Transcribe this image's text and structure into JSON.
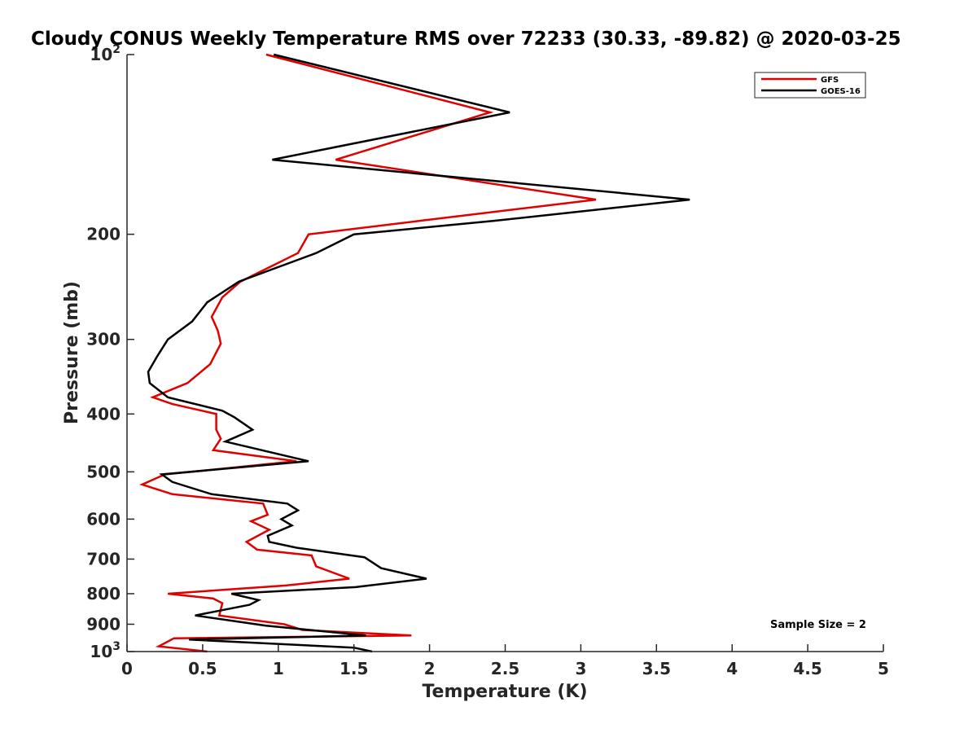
{
  "chart_data": {
    "type": "line",
    "title": "Cloudy CONUS Weekly Temperature RMS over 72233 (30.33, -89.82) @ 2020-03-25",
    "xlabel": "Temperature (K)",
    "ylabel": "Pressure (mb)",
    "xlim": [
      0,
      5
    ],
    "ylim": [
      100,
      1000
    ],
    "yscale": "log",
    "y_reversed": true,
    "grid": false,
    "legend_location": "top-right",
    "xticks": [
      0,
      0.5,
      1,
      1.5,
      2,
      2.5,
      3,
      3.5,
      4,
      4.5,
      5
    ],
    "xtick_labels": [
      "0",
      "0.5",
      "1",
      "1.5",
      "2",
      "2.5",
      "3",
      "3.5",
      "4",
      "4.5",
      "5"
    ],
    "yticks": [
      100,
      200,
      300,
      400,
      500,
      600,
      700,
      800,
      900,
      1000
    ],
    "ytick_labels": [
      {
        "base": "10",
        "exp": "2"
      },
      {
        "text": "200"
      },
      {
        "text": "300"
      },
      {
        "text": "400"
      },
      {
        "text": "500"
      },
      {
        "text": "600"
      },
      {
        "text": "700"
      },
      {
        "text": "800"
      },
      {
        "text": "900"
      },
      {
        "base": "10",
        "exp": "3"
      }
    ],
    "annotation": "Sample Size = 2",
    "series": [
      {
        "name": "GFS",
        "color": "#e00000",
        "points": [
          [
            0.92,
            100
          ],
          [
            2.4,
            125
          ],
          [
            1.38,
            150
          ],
          [
            3.1,
            175
          ],
          [
            1.93,
            190
          ],
          [
            1.2,
            200
          ],
          [
            1.13,
            215
          ],
          [
            0.75,
            240
          ],
          [
            0.63,
            255
          ],
          [
            0.56,
            275
          ],
          [
            0.6,
            290
          ],
          [
            0.62,
            305
          ],
          [
            0.55,
            330
          ],
          [
            0.4,
            355
          ],
          [
            0.17,
            375
          ],
          [
            0.3,
            385
          ],
          [
            0.59,
            400
          ],
          [
            0.59,
            425
          ],
          [
            0.62,
            440
          ],
          [
            0.57,
            460
          ],
          [
            1.12,
            480
          ],
          [
            0.25,
            505
          ],
          [
            0.1,
            525
          ],
          [
            0.3,
            545
          ],
          [
            0.9,
            565
          ],
          [
            0.93,
            590
          ],
          [
            0.82,
            605
          ],
          [
            0.94,
            625
          ],
          [
            0.79,
            655
          ],
          [
            0.86,
            675
          ],
          [
            1.22,
            690
          ],
          [
            1.25,
            720
          ],
          [
            1.47,
            755
          ],
          [
            1.05,
            775
          ],
          [
            0.27,
            800
          ],
          [
            0.57,
            815
          ],
          [
            0.63,
            830
          ],
          [
            0.61,
            870
          ],
          [
            1.04,
            900
          ],
          [
            1.16,
            920
          ],
          [
            1.88,
            940
          ],
          [
            0.31,
            950
          ],
          [
            0.21,
            980
          ],
          [
            0.53,
            1000
          ]
        ]
      },
      {
        "name": "GOES-16",
        "color": "#000000",
        "points": [
          [
            0.97,
            100
          ],
          [
            2.53,
            125
          ],
          [
            0.96,
            150
          ],
          [
            3.72,
            175
          ],
          [
            2.42,
            190
          ],
          [
            1.5,
            200
          ],
          [
            1.25,
            215
          ],
          [
            0.74,
            240
          ],
          [
            0.53,
            260
          ],
          [
            0.43,
            280
          ],
          [
            0.27,
            300
          ],
          [
            0.2,
            320
          ],
          [
            0.14,
            340
          ],
          [
            0.15,
            355
          ],
          [
            0.27,
            375
          ],
          [
            0.63,
            395
          ],
          [
            0.71,
            405
          ],
          [
            0.83,
            425
          ],
          [
            0.65,
            445
          ],
          [
            1.2,
            480
          ],
          [
            0.23,
            505
          ],
          [
            0.3,
            520
          ],
          [
            0.56,
            545
          ],
          [
            1.06,
            565
          ],
          [
            1.13,
            580
          ],
          [
            1.02,
            600
          ],
          [
            1.09,
            615
          ],
          [
            0.93,
            640
          ],
          [
            0.94,
            655
          ],
          [
            1.12,
            670
          ],
          [
            1.57,
            695
          ],
          [
            1.68,
            725
          ],
          [
            1.98,
            755
          ],
          [
            1.51,
            780
          ],
          [
            0.69,
            800
          ],
          [
            0.87,
            820
          ],
          [
            0.81,
            835
          ],
          [
            0.45,
            870
          ],
          [
            0.92,
            905
          ],
          [
            1.58,
            940
          ],
          [
            0.41,
            955
          ],
          [
            1.5,
            985
          ],
          [
            1.62,
            1000
          ]
        ]
      }
    ]
  }
}
